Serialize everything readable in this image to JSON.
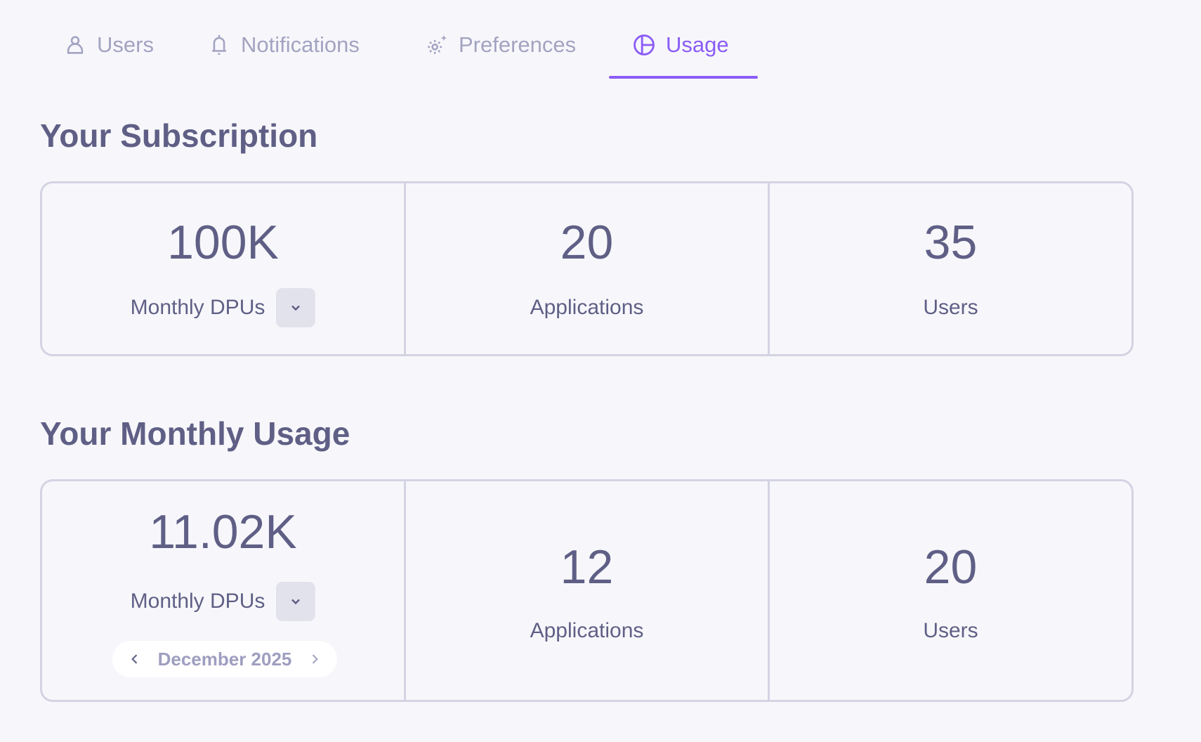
{
  "tabs": [
    {
      "label": "Users",
      "icon": "user-icon"
    },
    {
      "label": "Notifications",
      "icon": "bell-icon"
    },
    {
      "label": "Preferences",
      "icon": "gear-sparkle-icon"
    },
    {
      "label": "Usage",
      "icon": "pie-chart-icon",
      "active": true
    }
  ],
  "subscription": {
    "title": "Your Subscription",
    "dpus": {
      "value": "100K",
      "label": "Monthly DPUs"
    },
    "applications": {
      "value": "20",
      "label": "Applications"
    },
    "users": {
      "value": "35",
      "label": "Users"
    }
  },
  "usage": {
    "title": "Your Monthly Usage",
    "dpus": {
      "value": "11.02K",
      "label": "Monthly DPUs"
    },
    "month": "December 2025",
    "applications": {
      "value": "12",
      "label": "Applications"
    },
    "users": {
      "value": "20",
      "label": "Users"
    }
  },
  "colors": {
    "accent": "#8b5cf6",
    "text": "#5f5f86",
    "muted": "#a3a3c2",
    "border": "#d3d3e3"
  }
}
